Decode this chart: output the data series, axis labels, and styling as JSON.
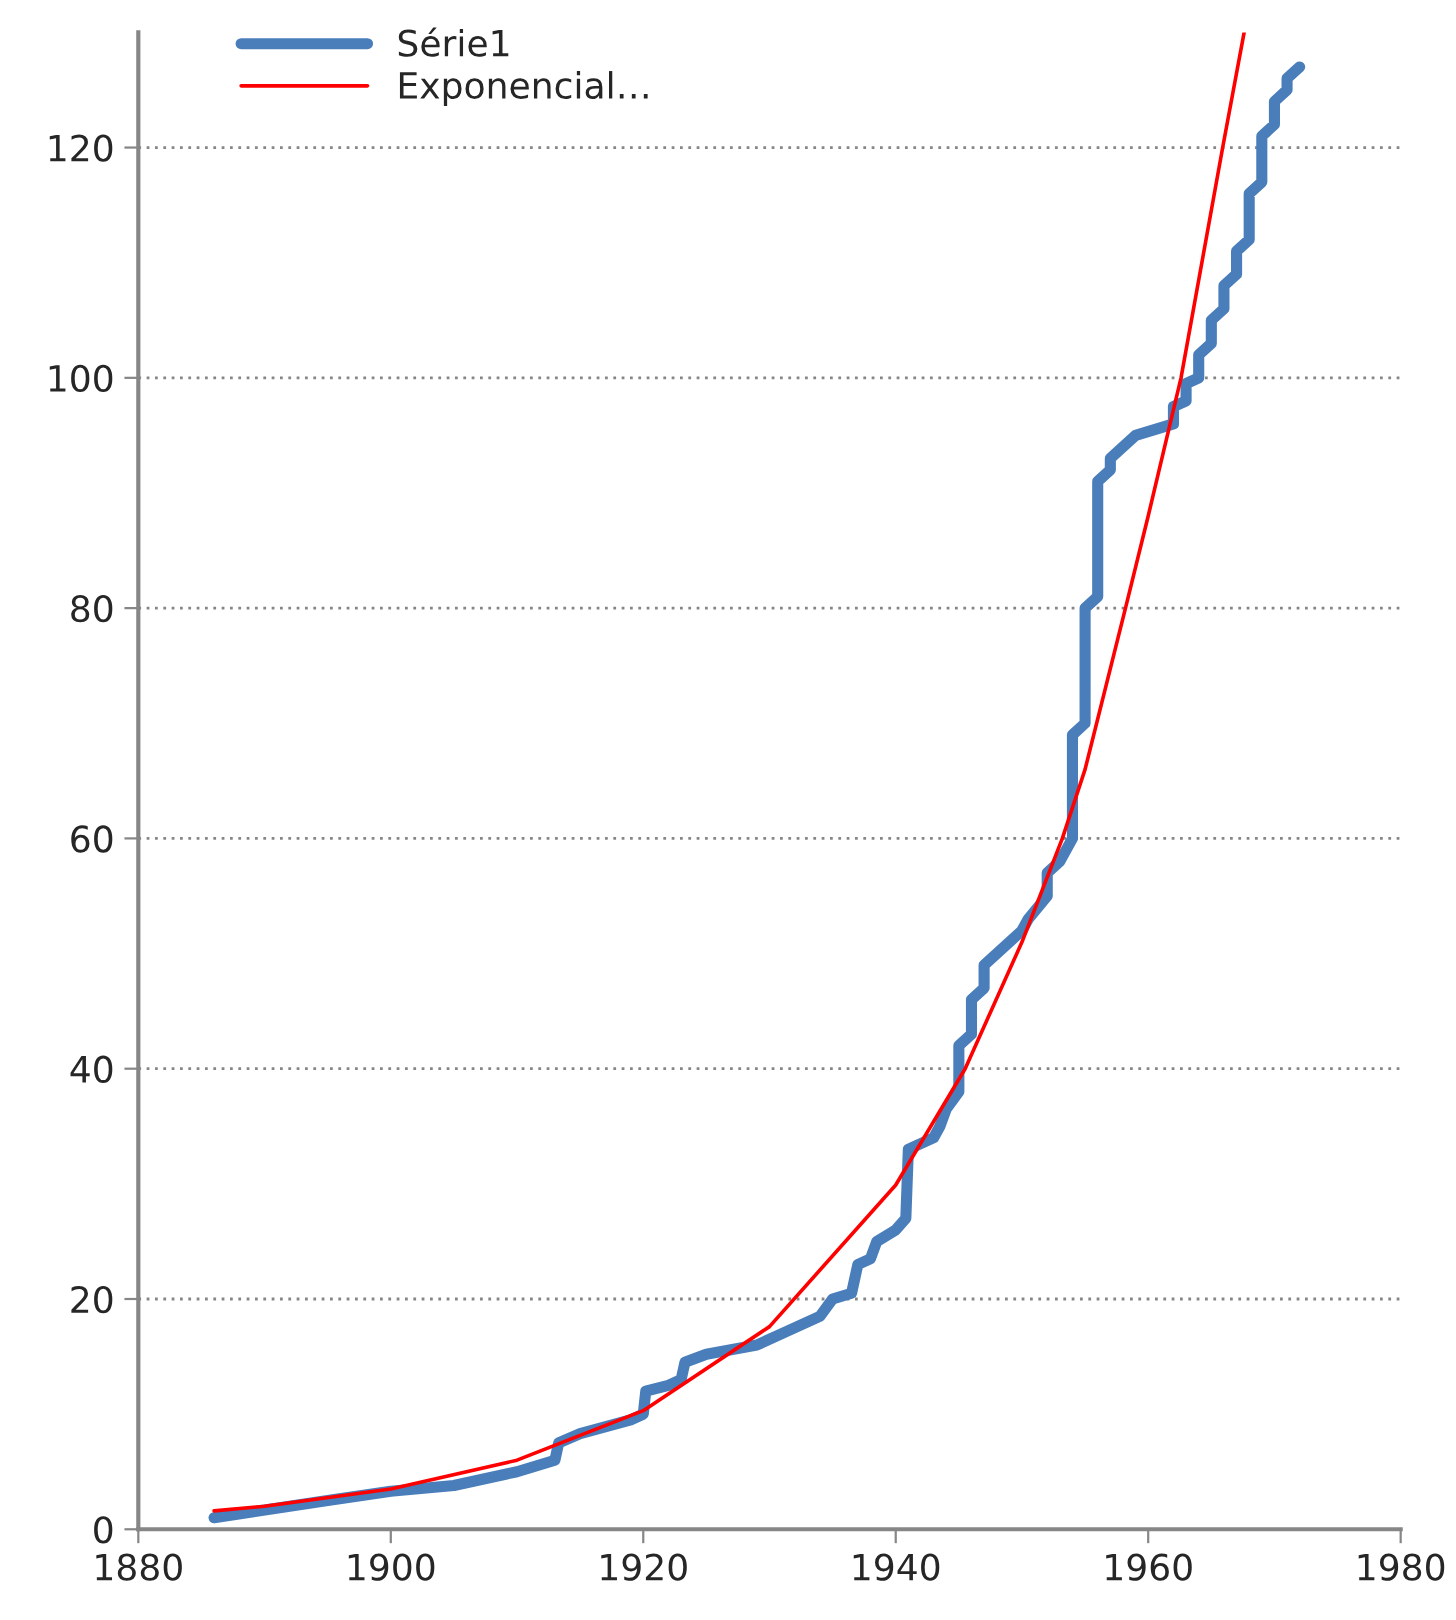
{
  "chart_data": {
    "type": "line",
    "series": [
      {
        "name": "Série1",
        "color": "#4a7ebb",
        "x": [
          1886,
          1895,
          1900,
          1905,
          1910,
          1913,
          1913.3,
          1915,
          1919,
          1920,
          1920.2,
          1922,
          1923,
          1923.3,
          1925,
          1929,
          1931,
          1934,
          1935,
          1936.5,
          1937,
          1938,
          1938.5,
          1940,
          1940.8,
          1941,
          1943,
          1943.5,
          1944,
          1945,
          1945,
          1946,
          1946,
          1947,
          1947,
          1950,
          1950.5,
          1952,
          1952,
          1953,
          1954,
          1954,
          1955,
          1955,
          1956,
          1956,
          1957,
          1957,
          1959,
          1962,
          1962,
          1963,
          1963,
          1964,
          1964,
          1965,
          1965,
          1966,
          1966,
          1967,
          1967,
          1968,
          1968,
          1969,
          1969,
          1970,
          1970,
          1971,
          1971,
          1972
        ],
        "values": [
          1,
          2.5,
          3.3,
          3.8,
          5,
          6,
          7.5,
          8.3,
          9.5,
          10,
          12,
          12.5,
          13,
          14.5,
          15.2,
          16,
          17,
          18.5,
          20,
          20.5,
          23,
          23.5,
          25,
          26,
          27,
          33,
          34,
          35,
          36.5,
          38,
          42,
          43,
          46,
          47,
          49,
          52,
          53,
          55,
          57,
          58,
          60,
          69,
          70,
          80,
          81,
          91,
          92,
          93,
          95,
          96,
          97.5,
          98,
          99.5,
          100,
          102,
          103,
          105,
          106,
          108,
          109,
          111,
          112,
          116,
          117,
          121,
          122,
          124,
          125,
          126,
          127
        ]
      },
      {
        "name": "Exponencial…",
        "type": "line",
        "color": "#ff0000",
        "x": [
          1886,
          1890,
          1900,
          1910,
          1920,
          1930,
          1940,
          1945.5,
          1950,
          1953.2,
          1955,
          1958.2,
          1960,
          1962.6,
          1965.9,
          1967.6
        ],
        "values": [
          1.6,
          2.0,
          3.5,
          6,
          10.3,
          17.6,
          29.9,
          40,
          51,
          60,
          66,
          80,
          88,
          100,
          120,
          130
        ]
      }
    ],
    "xlim": [
      1880,
      1980
    ],
    "xticks": [
      1880,
      1900,
      1920,
      1940,
      1960,
      1980
    ],
    "ylim": [
      0,
      130
    ],
    "yticks": [
      0,
      20,
      40,
      60,
      80,
      100,
      120
    ],
    "grid": "y",
    "legend": "top left",
    "marker": "none",
    "line_style": "solid"
  }
}
